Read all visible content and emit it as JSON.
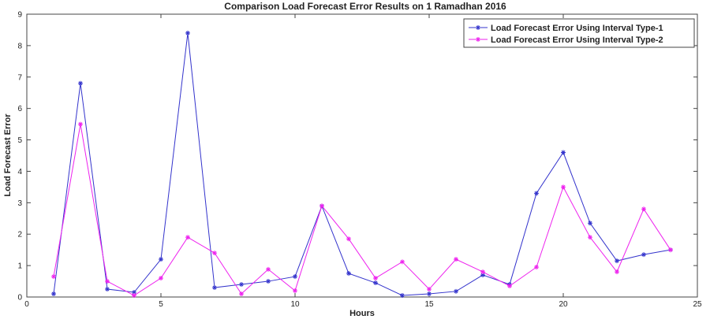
{
  "chart_data": {
    "type": "line",
    "title": "Comparison Load Forecast Error Results on 1 Ramadhan 2016",
    "xlabel": "Hours",
    "ylabel": "Load Forecast Error",
    "xlim": [
      0,
      25
    ],
    "ylim": [
      0,
      9
    ],
    "xticks": [
      0,
      5,
      10,
      15,
      20,
      25
    ],
    "yticks": [
      0,
      1,
      2,
      3,
      4,
      5,
      6,
      7,
      8,
      9
    ],
    "grid": false,
    "legend_position": "top-right",
    "x": [
      1,
      2,
      3,
      4,
      5,
      6,
      7,
      8,
      9,
      10,
      11,
      12,
      13,
      14,
      15,
      16,
      17,
      18,
      19,
      20,
      21,
      22,
      23,
      24
    ],
    "series": [
      {
        "name": "Load Forecast Error Using Interval Type-1",
        "color": "#3333cc",
        "marker": "star",
        "values": [
          0.1,
          6.8,
          0.25,
          0.15,
          1.2,
          8.4,
          0.3,
          0.4,
          0.5,
          0.65,
          2.9,
          0.75,
          0.45,
          0.05,
          0.1,
          0.18,
          0.7,
          0.4,
          3.3,
          4.6,
          2.35,
          1.15,
          1.35,
          1.5
        ]
      },
      {
        "name": "Load Forecast Error Using Interval Type-2",
        "color": "#ee22ee",
        "marker": "star",
        "values": [
          0.65,
          5.5,
          0.5,
          0.05,
          0.6,
          1.9,
          1.4,
          0.1,
          0.88,
          0.2,
          2.9,
          1.85,
          0.6,
          1.12,
          0.25,
          1.2,
          0.8,
          0.35,
          0.95,
          3.5,
          1.9,
          0.8,
          2.8,
          1.5
        ]
      }
    ]
  }
}
